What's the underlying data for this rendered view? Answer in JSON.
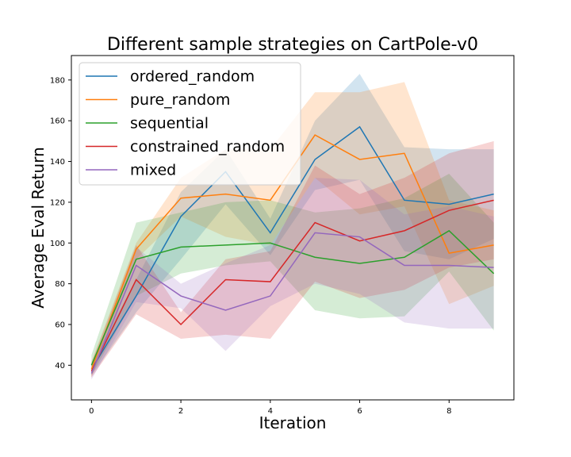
{
  "chart_data": {
    "type": "line",
    "title": "Different sample strategies on CartPole-v0",
    "xlabel": "Iteration",
    "ylabel": "Average Eval Return",
    "xlim": [
      -0.45,
      9.45
    ],
    "ylim": [
      23,
      192
    ],
    "xticks": [
      0,
      2,
      4,
      6,
      8
    ],
    "yticks": [
      40,
      60,
      80,
      100,
      120,
      140,
      160,
      180
    ],
    "grid": false,
    "legend_position": "top-left",
    "x": [
      0,
      1,
      2,
      3,
      4,
      5,
      6,
      7,
      8,
      9
    ],
    "series": [
      {
        "name": "ordered_random",
        "color": "#1f77b4",
        "values": [
          38,
          74,
          113,
          135,
          105,
          141,
          157,
          121,
          119,
          124
        ],
        "upper": [
          41,
          82,
          125,
          146,
          112,
          160,
          183,
          147,
          146,
          146
        ],
        "lower": [
          35,
          66,
          92,
          119,
          94,
          126,
          131,
          96,
          92,
          102
        ]
      },
      {
        "name": "pure_random",
        "color": "#ff7f0e",
        "values": [
          38,
          97,
          122,
          124,
          121,
          153,
          141,
          144,
          95,
          99
        ],
        "upper": [
          42,
          100,
          132,
          146,
          146,
          174,
          174,
          179,
          121,
          116
        ],
        "lower": [
          34,
          92,
          113,
          103,
          99,
          132,
          114,
          118,
          70,
          79
        ]
      },
      {
        "name": "sequential",
        "color": "#2ca02c",
        "values": [
          40,
          92,
          98,
          99,
          100,
          93,
          90,
          93,
          106,
          85
        ],
        "upper": [
          45,
          110,
          115,
          120,
          121,
          115,
          117,
          122,
          134,
          110
        ],
        "lower": [
          35,
          74,
          85,
          89,
          91,
          67,
          63,
          64,
          86,
          57
        ]
      },
      {
        "name": "constrained_random",
        "color": "#d62728",
        "values": [
          37,
          82,
          60,
          82,
          81,
          110,
          101,
          106,
          116,
          121
        ],
        "upper": [
          41,
          99,
          66,
          92,
          96,
          138,
          124,
          132,
          144,
          150
        ],
        "lower": [
          34,
          65,
          53,
          55,
          53,
          81,
          73,
          77,
          88,
          92
        ]
      },
      {
        "name": "mixed",
        "color": "#9467bd",
        "values": [
          36,
          89,
          74,
          67,
          74,
          105,
          103,
          89,
          89,
          88
        ],
        "upper": [
          39,
          98,
          80,
          90,
          99,
          132,
          131,
          114,
          118,
          113
        ],
        "lower": [
          33,
          71,
          68,
          47,
          69,
          80,
          75,
          61,
          58,
          58
        ]
      }
    ]
  }
}
